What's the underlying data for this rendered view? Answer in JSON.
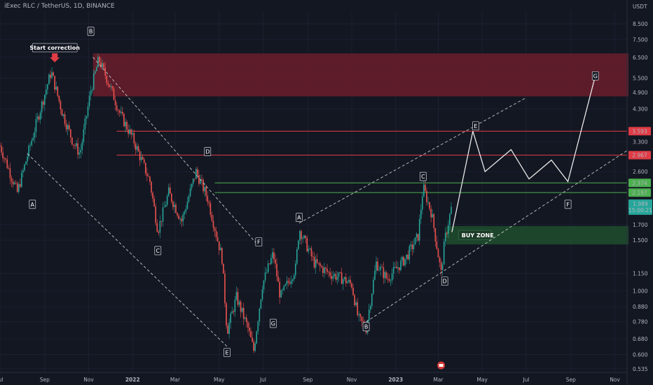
{
  "symbol_title": "iExec RLC / TetherUS, 1D, BINANCE",
  "colors": {
    "background": "#131722",
    "up": "#26a69a",
    "down": "#ef5350",
    "resistance": "#e03c46",
    "support": "#4caf50",
    "resistance_zone": "#6b1d2b",
    "buy_zone": "#1e4a2c",
    "projection": "#e8e8e8",
    "channel": "#cfcfcf",
    "price_tag": "#26a69a"
  },
  "chart_data": {
    "type": "line",
    "title": "iExec RLC / TetherUS, 1D, BINANCE",
    "y_scale": "log",
    "y_unit": "USDT",
    "ylim": [
      0.52,
      9.4
    ],
    "x_tick_labels": [
      "Jul",
      "Sep",
      "Nov",
      "2022",
      "Mar",
      "May",
      "Jul",
      "Sep",
      "Nov",
      "2023",
      "Mar",
      "May",
      "Jul",
      "Sep",
      "Nov"
    ],
    "y_tick_labels": [
      "8.500",
      "7.500",
      "6.500",
      "5.500",
      "4.900",
      "4.300",
      "3.300",
      "2.600",
      "1.700",
      "1.500",
      "1.150",
      "1.000",
      "0.880",
      "0.780",
      "0.680",
      "0.600",
      "0.535"
    ],
    "y_tick_values": [
      8.5,
      7.5,
      6.5,
      5.5,
      4.9,
      4.3,
      3.3,
      2.6,
      1.7,
      1.5,
      1.15,
      1.0,
      0.88,
      0.78,
      0.68,
      0.6,
      0.535
    ],
    "price_path": {
      "x": [
        "2021-07-01",
        "2021-07-25",
        "2021-08-20",
        "2021-09-10",
        "2021-09-25",
        "2021-10-10",
        "2021-10-20",
        "2021-11-04",
        "2021-11-15",
        "2021-11-30",
        "2021-12-15",
        "2022-01-01",
        "2022-01-25",
        "2022-02-05",
        "2022-02-20",
        "2022-03-10",
        "2022-03-30",
        "2022-04-15",
        "2022-05-05",
        "2022-05-12",
        "2022-05-25",
        "2022-06-10",
        "2022-06-18",
        "2022-06-30",
        "2022-07-15",
        "2022-07-25",
        "2022-08-15",
        "2022-08-20",
        "2022-09-10",
        "2022-10-01",
        "2022-10-20",
        "2022-11-01",
        "2022-11-10",
        "2022-11-21",
        "2022-12-05",
        "2022-12-20",
        "2023-01-15",
        "2023-02-01",
        "2023-02-08",
        "2023-02-20",
        "2023-03-05",
        "2023-03-10",
        "2023-03-20"
      ],
      "y": [
        3.2,
        2.2,
        3.8,
        5.8,
        4.2,
        3.3,
        3.0,
        5.0,
        6.4,
        5.2,
        4.1,
        3.4,
        2.4,
        1.62,
        2.2,
        1.75,
        2.6,
        2.1,
        1.3,
        0.72,
        0.95,
        0.74,
        0.62,
        1.05,
        1.35,
        0.95,
        1.2,
        1.65,
        1.25,
        1.15,
        1.1,
        1.05,
        0.8,
        0.74,
        1.25,
        1.1,
        1.3,
        1.55,
        2.3,
        1.85,
        1.15,
        1.5,
        1.99
      ]
    },
    "current_price": "1.989",
    "current_countdown": "15:00:21",
    "horizontal_levels": [
      {
        "value": 3.593,
        "label": "3.593",
        "kind": "resistance"
      },
      {
        "value": 2.967,
        "label": "2.967",
        "kind": "resistance"
      },
      {
        "value": 2.374,
        "label": "2.374",
        "kind": "support"
      },
      {
        "value": 2.197,
        "label": "2.197",
        "kind": "support"
      }
    ],
    "resistance_zone": {
      "x": [
        "2021-11-07",
        "2023-11-20"
      ],
      "y": [
        4.75,
        6.7
      ]
    },
    "buy_zone": {
      "x": [
        "2023-03-12",
        "2023-11-20"
      ],
      "y": [
        1.45,
        1.68
      ],
      "label": "BUY ZONE"
    },
    "wave_points": [
      {
        "label": "A",
        "x": "2021-08-15",
        "y": 2.0
      },
      {
        "label": "B",
        "x": "2021-11-04",
        "y": 8.0
      },
      {
        "label": "C",
        "x": "2022-02-05",
        "y": 1.38
      },
      {
        "label": "D",
        "x": "2022-04-15",
        "y": 3.05
      },
      {
        "label": "E",
        "x": "2022-05-12",
        "y": 0.61
      },
      {
        "label": "F",
        "x": "2022-06-25",
        "y": 1.48
      },
      {
        "label": "G",
        "x": "2022-07-15",
        "y": 0.77
      },
      {
        "label": "A",
        "x": "2022-08-20",
        "y": 1.8
      },
      {
        "label": "B",
        "x": "2022-11-21",
        "y": 0.75
      },
      {
        "label": "C",
        "x": "2023-02-08",
        "y": 2.5
      },
      {
        "label": "D",
        "x": "2023-03-10",
        "y": 1.08
      },
      {
        "label": "E",
        "x": "2023-04-22",
        "y": 3.75
      },
      {
        "label": "F",
        "x": "2023-08-28",
        "y": 2.0
      },
      {
        "label": "G",
        "x": "2023-10-05",
        "y": 5.6
      }
    ],
    "annotation": {
      "text": "Start correction",
      "x": "2021-09-15",
      "y": 5.8
    },
    "projection_path": {
      "x": [
        "2023-03-20",
        "2023-04-18",
        "2023-05-05",
        "2023-06-10",
        "2023-07-05",
        "2023-08-05",
        "2023-08-28",
        "2023-10-05"
      ],
      "y": [
        1.6,
        3.593,
        2.6,
        3.1,
        2.45,
        2.85,
        2.4,
        5.6
      ]
    },
    "channels": [
      {
        "name": "lower-left",
        "x": [
          "2021-08-08",
          "2022-05-12"
        ],
        "y": [
          3.0,
          0.64
        ]
      },
      {
        "name": "upper-left",
        "x": [
          "2021-11-07",
          "2022-06-22"
        ],
        "y": [
          6.5,
          1.46
        ]
      },
      {
        "name": "upper-right",
        "x": [
          "2022-08-20",
          "2023-07-01"
        ],
        "y": [
          1.72,
          4.7
        ]
      },
      {
        "name": "lower-right",
        "x": [
          "2022-11-21",
          "2023-11-20"
        ],
        "y": [
          0.78,
          3.1
        ]
      }
    ]
  },
  "axis_unit_label": "USDT",
  "calendar_icon": "calendar-event-icon"
}
